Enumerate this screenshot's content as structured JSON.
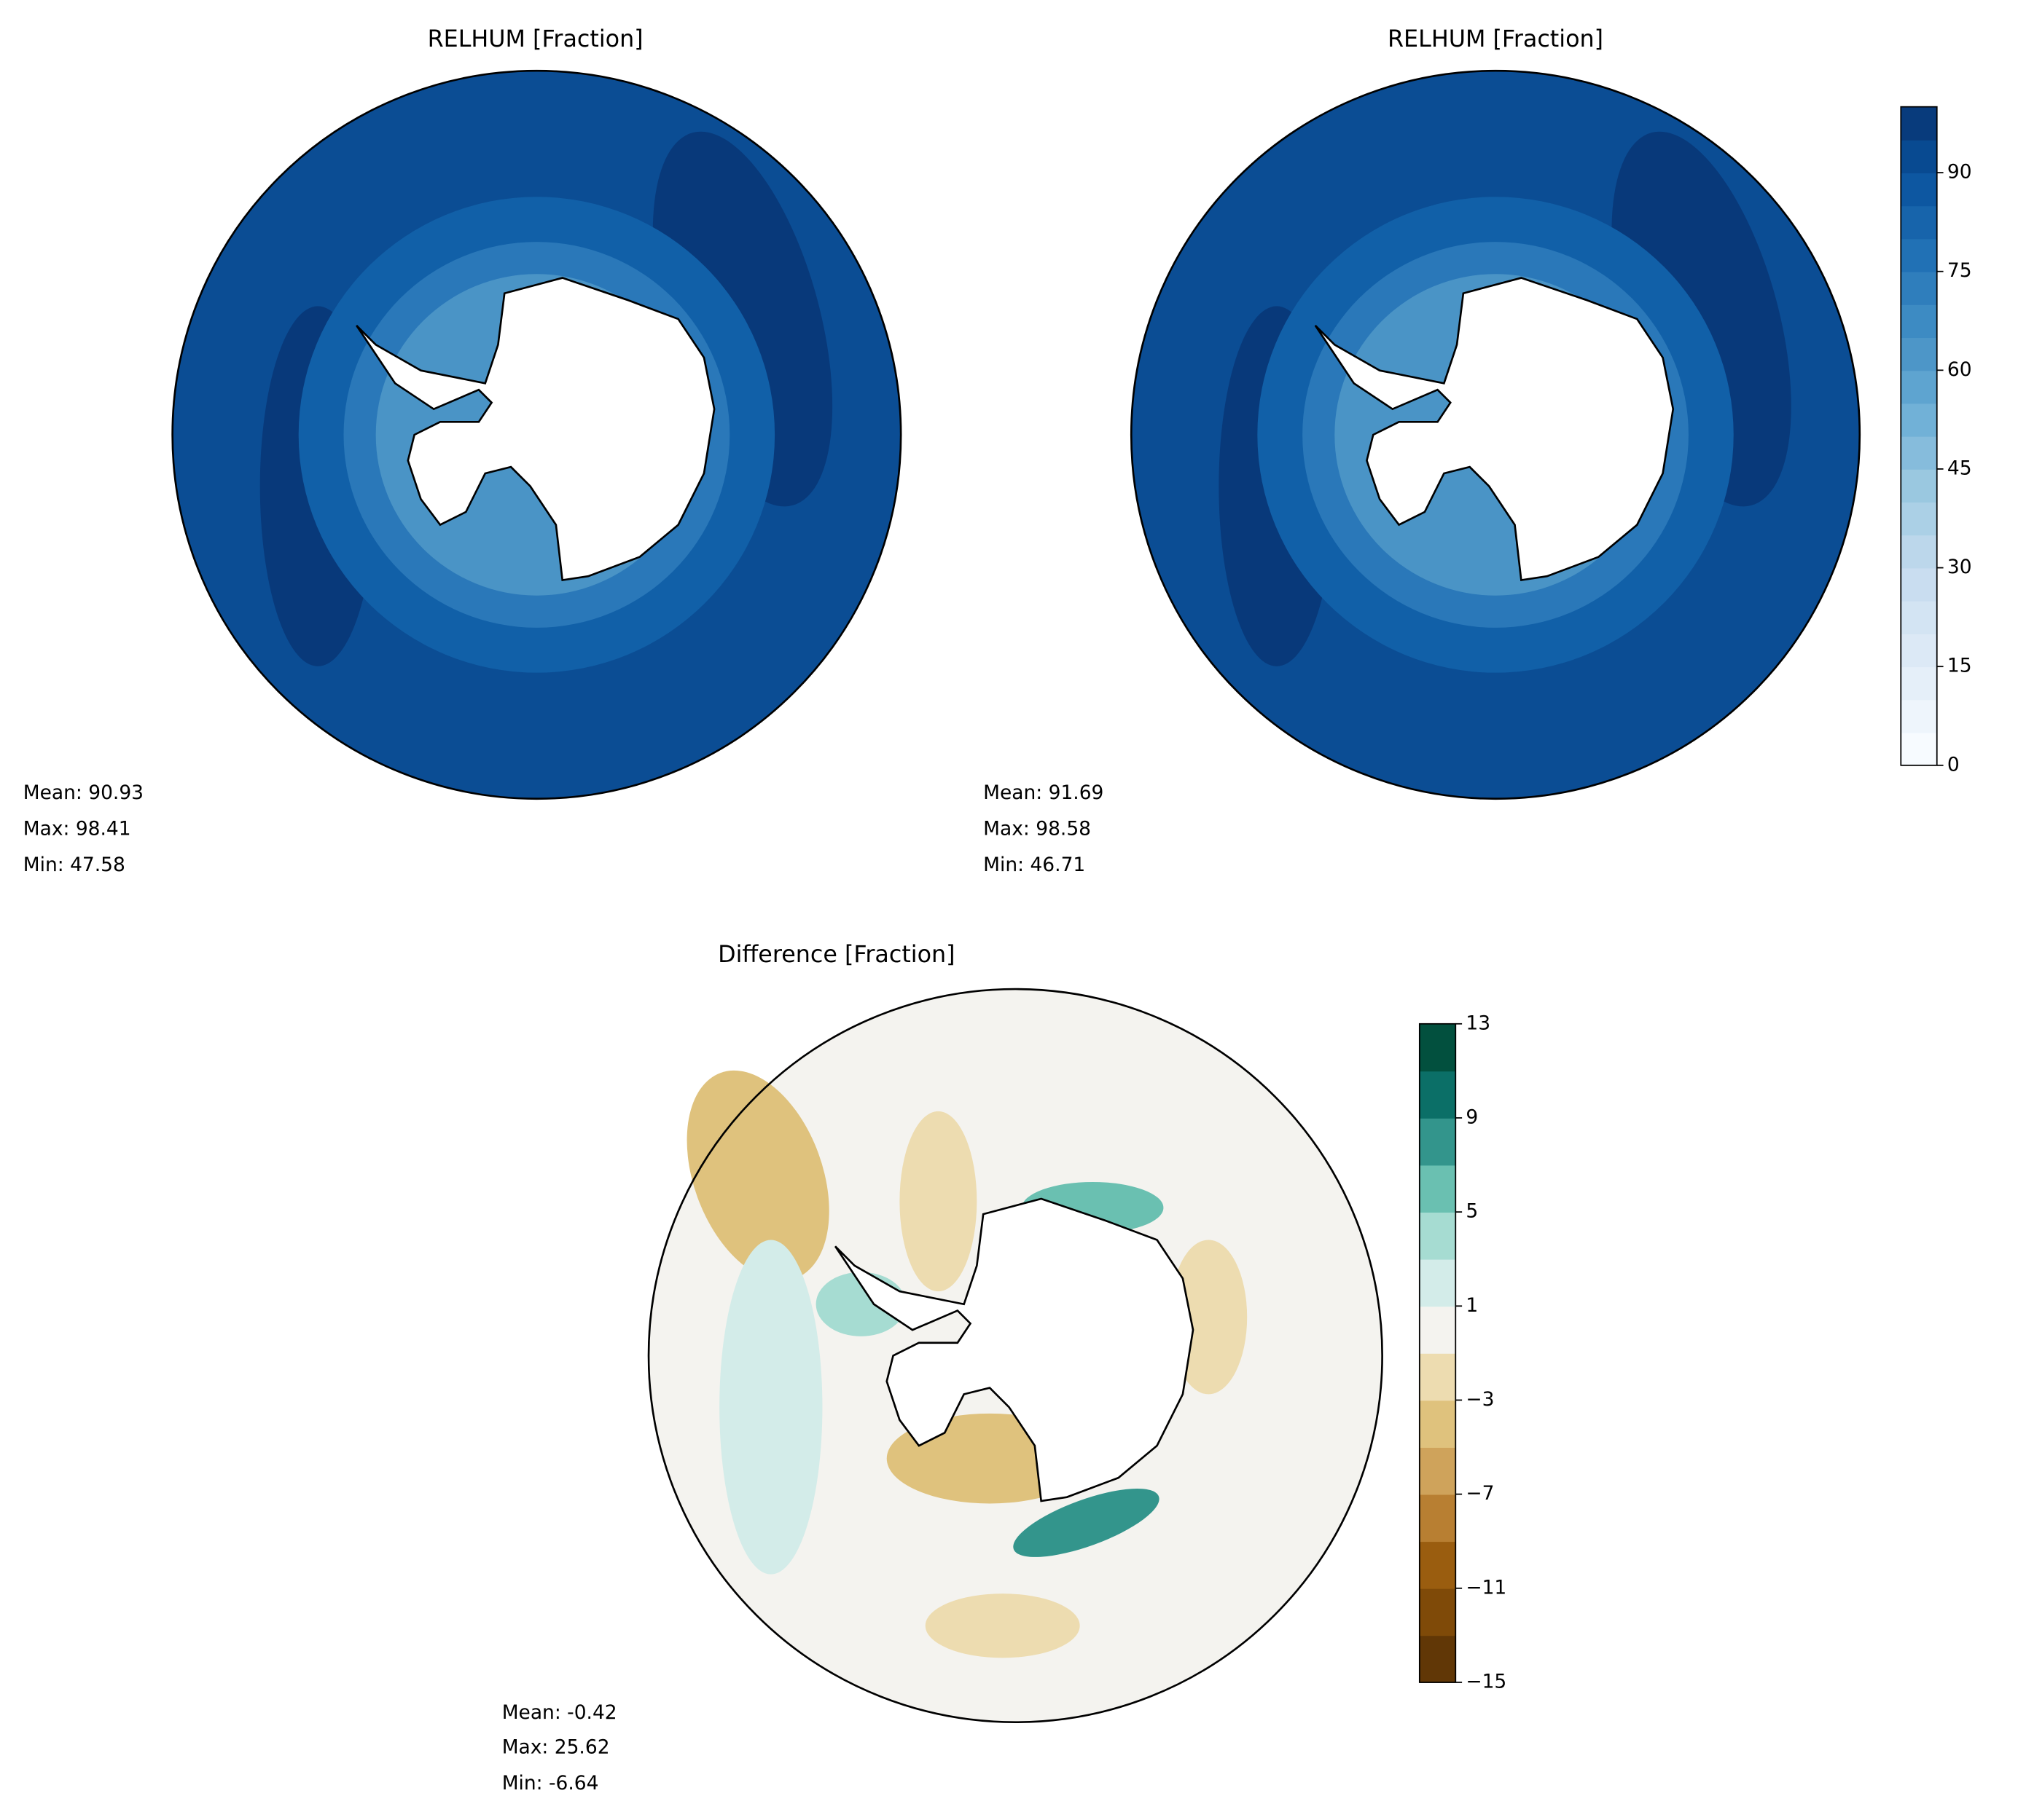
{
  "panels": [
    {
      "title": "RELHUM [Fraction]",
      "stats": [
        "Mean: 90.93",
        "Max: 98.41",
        "Min: 47.58"
      ]
    },
    {
      "title": "RELHUM [Fraction]",
      "stats": [
        "Mean: 91.69",
        "Max: 98.58",
        "Min: 46.71"
      ]
    },
    {
      "title": "Difference [Fraction]",
      "stats": [
        "Mean: -0.42",
        "Max: 25.62",
        "Min: -6.64"
      ]
    }
  ],
  "colorbars": [
    {
      "range": [
        0,
        100
      ],
      "ticks": [
        0,
        15,
        30,
        45,
        60,
        75,
        90
      ],
      "colors": [
        "#f7fbff",
        "#eef5fc",
        "#e5eff9",
        "#dce9f6",
        "#d3e4f3",
        "#c9ddf0",
        "#bcd7eb",
        "#abd0e6",
        "#9ac8e0",
        "#86bcdc",
        "#71b1d7",
        "#5ea4d0",
        "#4d96c8",
        "#3d8bc3",
        "#2f7ebc",
        "#2171b5",
        "#1764ab",
        "#0d57a1",
        "#084a91",
        "#083b7c"
      ]
    },
    {
      "range": [
        -15,
        13
      ],
      "ticks": [
        {
          "value": -15,
          "label": "−15"
        },
        {
          "value": -11,
          "label": "−11"
        },
        {
          "value": -7,
          "label": "−7"
        },
        {
          "value": -3,
          "label": "−3"
        },
        1,
        5,
        9,
        13
      ],
      "colors": [
        "#613706",
        "#7f4a08",
        "#9a5d0f",
        "#b87f32",
        "#cfa35b",
        "#dfc27d",
        "#eddcb0",
        "#f4f3ef",
        "#d3ece9",
        "#a6dcd2",
        "#6ac0b1",
        "#33958c",
        "#0b6f67",
        "#02503e"
      ]
    }
  ]
}
